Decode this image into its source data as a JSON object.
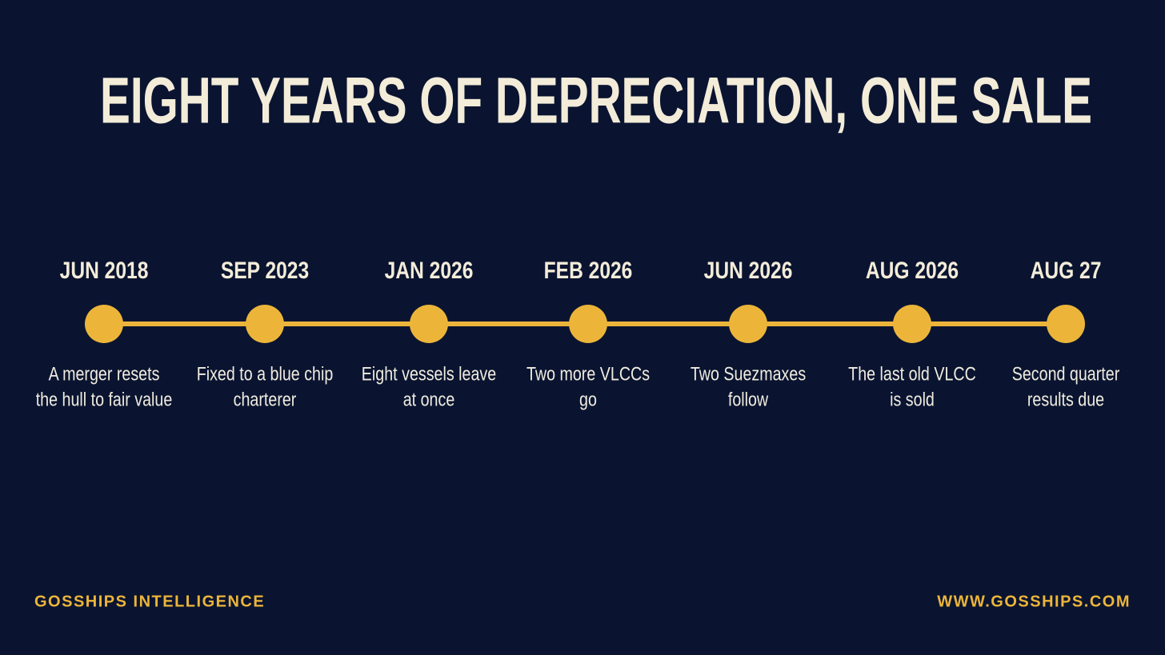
{
  "title": "EIGHT YEARS OF DEPRECIATION, ONE SALE",
  "events": [
    {
      "date": "JUN 2018",
      "lines": [
        "A merger resets",
        "the hull to fair value"
      ]
    },
    {
      "date": "SEP 2023",
      "lines": [
        "Fixed to a blue chip",
        "charterer"
      ]
    },
    {
      "date": "JAN 2026",
      "lines": [
        "Eight vessels leave",
        "at once"
      ]
    },
    {
      "date": "FEB 2026",
      "lines": [
        "Two more VLCCs",
        "go"
      ]
    },
    {
      "date": "JUN 2026",
      "lines": [
        "Two Suezmaxes",
        "follow"
      ]
    },
    {
      "date": "AUG 2026",
      "lines": [
        "The last old VLCC",
        "is sold"
      ]
    },
    {
      "date": "AUG 27",
      "lines": [
        "Second quarter",
        "results due"
      ]
    }
  ],
  "footer": {
    "left": "GOSSHIPS INTELLIGENCE",
    "right": "WWW.GOSSHIPS.COM"
  }
}
